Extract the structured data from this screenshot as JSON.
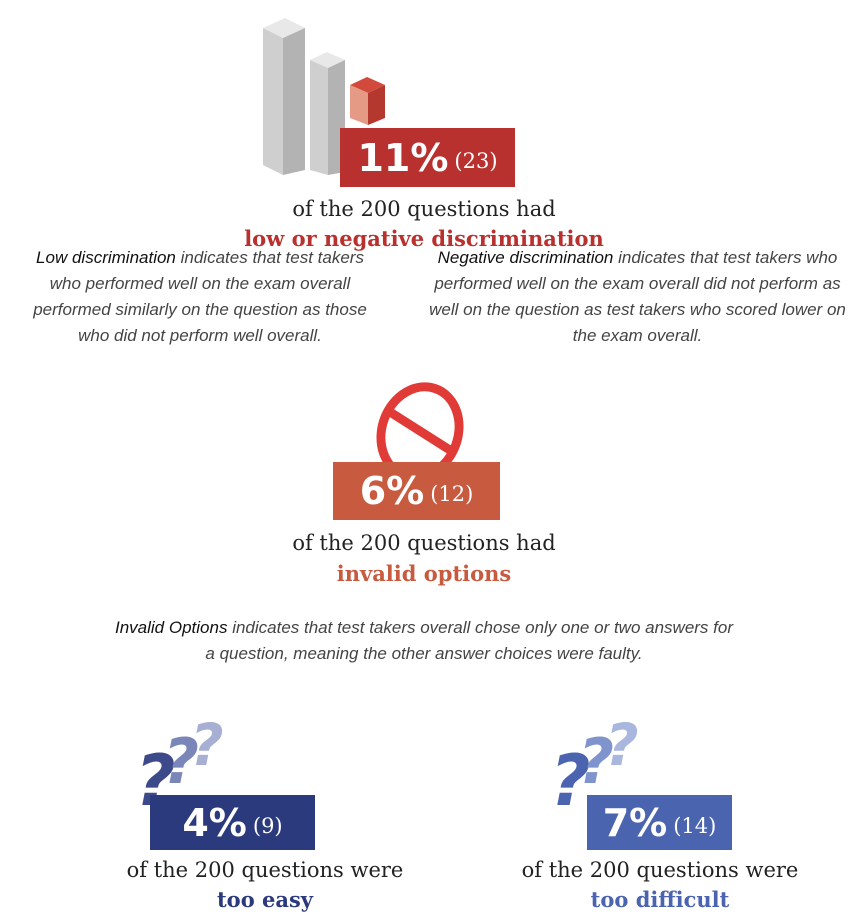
{
  "stats": [
    {
      "percent": "11%",
      "count": "(23)",
      "line": "of the 200 questions had",
      "highlight": "low or negative discrimination"
    },
    {
      "percent": "6%",
      "count": "(12)",
      "line": "of the 200 questions had",
      "highlight": "invalid options"
    },
    {
      "percent": "4%",
      "count": "(9)",
      "line": "of the 200 questions were",
      "highlight": "too easy"
    },
    {
      "percent": "7%",
      "count": "(14)",
      "line": "of the 200 questions were",
      "highlight": "too difficult"
    }
  ],
  "definitions": [
    {
      "term": "Low discrimination",
      "text": "indicates that test takers who performed well on the exam overall performed similarly on the question as those who did not perform well overall."
    },
    {
      "term": "Negative discrimination",
      "text": "indicates that test takers who performed well on the exam overall did not perform as well on the question as test takers who scored lower on the exam overall."
    },
    {
      "term": "Invalid Options",
      "text": "indicates that test takers overall chose only one or two answers for a question, meaning the other answer choices were faulty."
    }
  ]
}
